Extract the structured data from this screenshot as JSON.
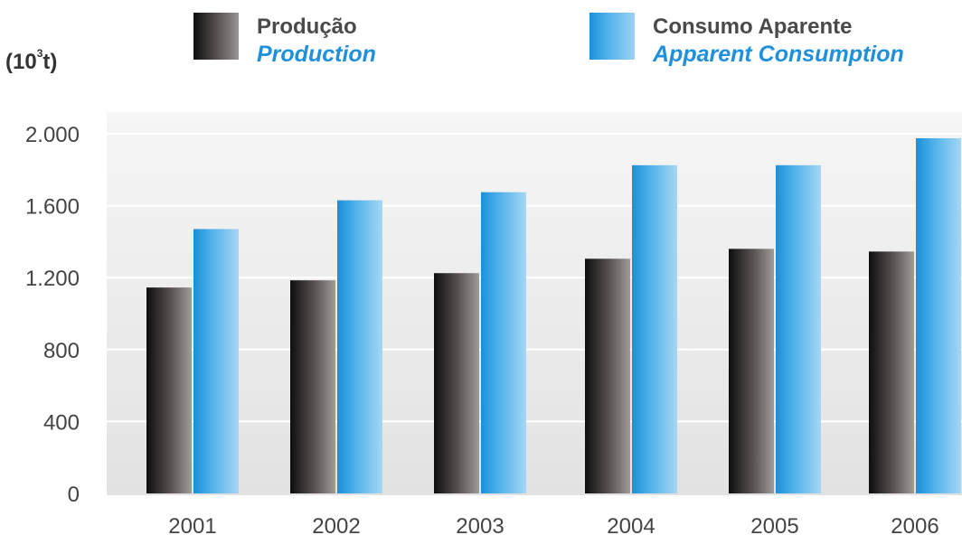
{
  "chart_data": {
    "type": "bar",
    "unit_label": {
      "base": "(10",
      "sup": "3",
      "rest": "t)"
    },
    "categories": [
      "2001",
      "2002",
      "2003",
      "2004",
      "2005",
      "2006"
    ],
    "series": [
      {
        "name_pt": "Produção",
        "name_en": "Production",
        "values": [
          1145,
          1185,
          1225,
          1305,
          1360,
          1345
        ]
      },
      {
        "name_pt": "Consumo Aparente",
        "name_en": "Apparent Consumption",
        "values": [
          1470,
          1630,
          1675,
          1825,
          1825,
          1975
        ]
      }
    ],
    "ylim": [
      0,
      2000
    ],
    "yticks": [
      0,
      400,
      800,
      1200,
      1600,
      2000
    ],
    "ytick_labels": [
      "0",
      "400",
      "800",
      "1.200",
      "1.600",
      "2.000"
    ],
    "grid": true,
    "legend_position": "top",
    "colors": {
      "production": "#1a1a1a",
      "consumption": "#1e90dc",
      "legend_en_text": "#1e90dc",
      "grid": "#ffffff",
      "plot_bg": "#eeeeee"
    }
  }
}
